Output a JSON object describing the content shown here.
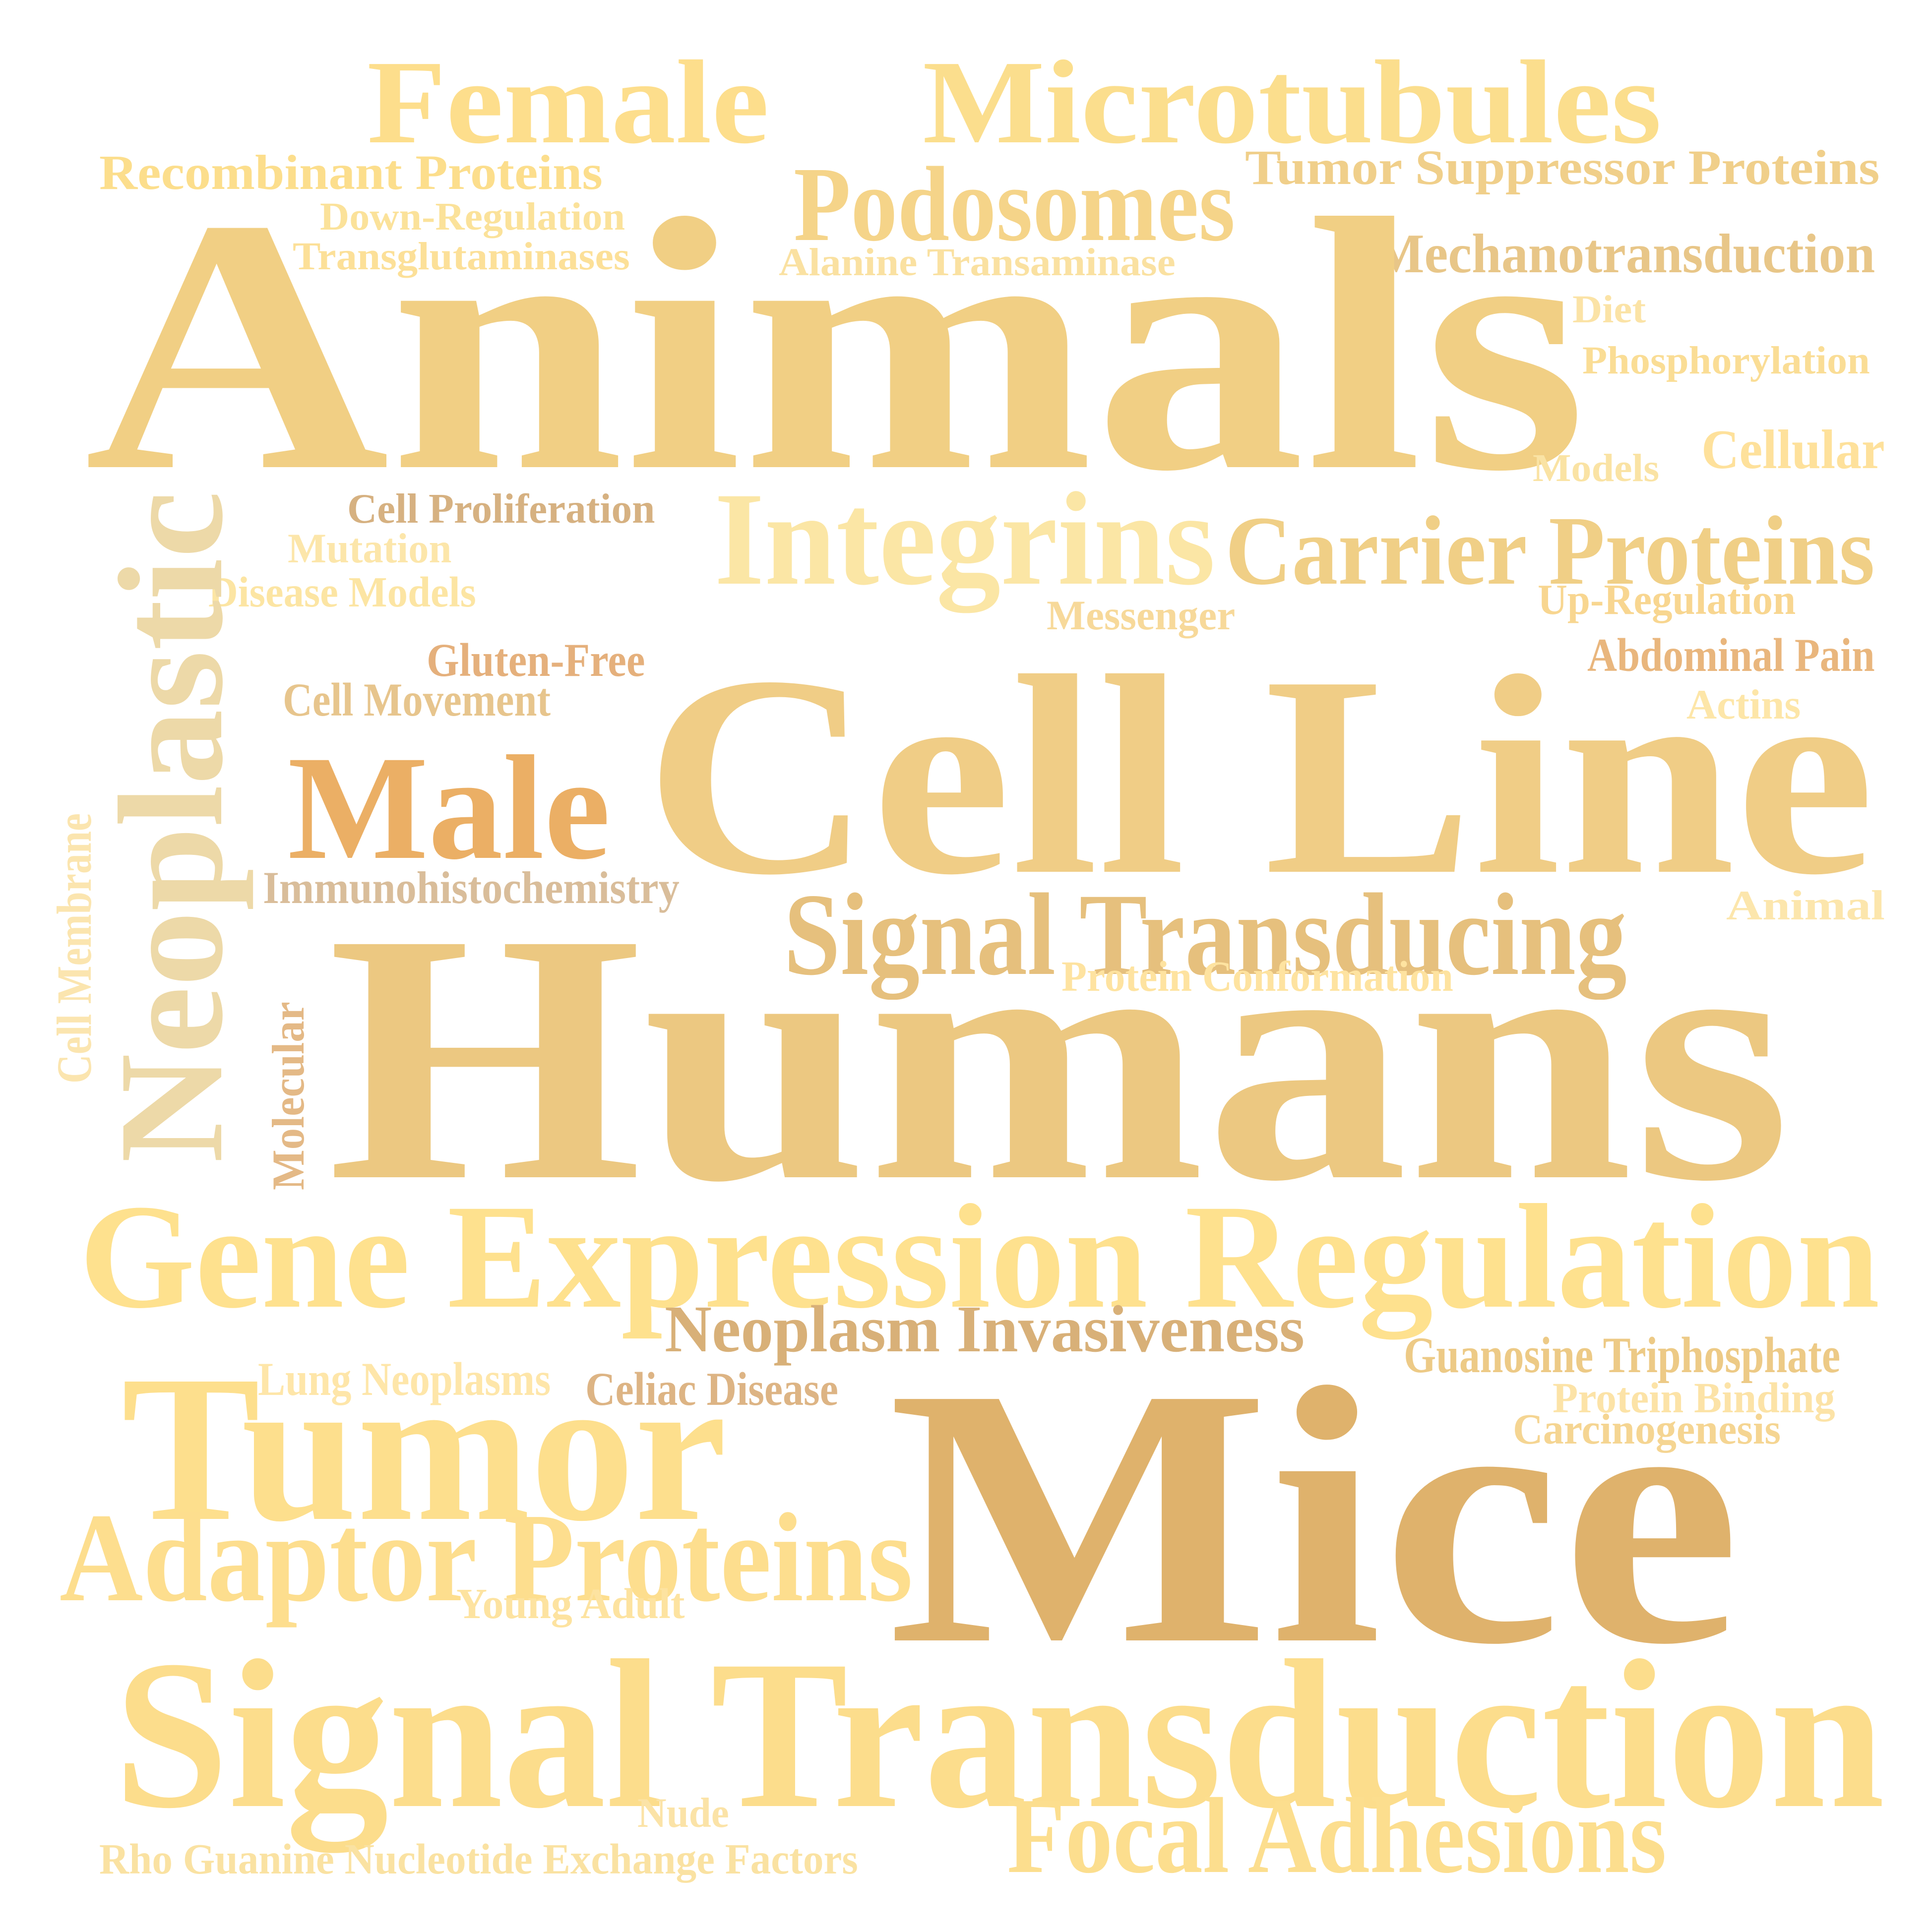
{
  "words": [
    {
      "text": "Female",
      "color": "#FDDE8C"
    },
    {
      "text": "Microtubules",
      "color": "#FBDE8D"
    },
    {
      "text": "Recombinant Proteins",
      "color": "#FCDE8C"
    },
    {
      "text": "Tumor Suppressor Proteins",
      "color": "#F0CF8A"
    },
    {
      "text": "Podosomes",
      "color": "#F5D489"
    },
    {
      "text": "Down-Regulation",
      "color": "#FBE29A"
    },
    {
      "text": "Transglutaminases",
      "color": "#FCE098"
    },
    {
      "text": "Alanine Transaminase",
      "color": "#FAE1A1"
    },
    {
      "text": "Mechanotransduction",
      "color": "#E8C688"
    },
    {
      "text": "Animals",
      "color": "#F1CF84"
    },
    {
      "text": "Diet",
      "color": "#FBE3A6"
    },
    {
      "text": "Phosphorylation",
      "color": "#FADD95"
    },
    {
      "text": "Cellular",
      "color": "#FEE19B"
    },
    {
      "text": "Models",
      "color": "#FAE3A4"
    },
    {
      "text": "Cell Proliferation",
      "color": "#D6B181"
    },
    {
      "text": "Mutation",
      "color": "#FCE6AA"
    },
    {
      "text": "Integrins",
      "color": "#FBE6A5"
    },
    {
      "text": "Carrier Proteins",
      "color": "#F0CF86"
    },
    {
      "text": "Disease Models",
      "color": "#FCE5A3"
    },
    {
      "text": "Up-Regulation",
      "color": "#F8D690"
    },
    {
      "text": "Messenger",
      "color": "#F7D99A"
    },
    {
      "text": "Neoplastic",
      "color": "#EDD9A8"
    },
    {
      "text": "Gluten-Free",
      "color": "#E5B07C"
    },
    {
      "text": "Abdominal Pain",
      "color": "#E9B67D"
    },
    {
      "text": "Cell Movement",
      "color": "#E7C58D"
    },
    {
      "text": "Actins",
      "color": "#FDE6A8"
    },
    {
      "text": "Cell Line",
      "color": "#F0CD86"
    },
    {
      "text": "Male",
      "color": "#EBAF65"
    },
    {
      "text": "Immunohistochemistry",
      "color": "#D9BD9A"
    },
    {
      "text": "Animal",
      "color": "#FCE6AC"
    },
    {
      "text": "Signal Transducing",
      "color": "#E6C07D"
    },
    {
      "text": "Cell Membrane",
      "color": "#FBE5AF"
    },
    {
      "text": "Protein Conformation",
      "color": "#FEE3A0"
    },
    {
      "text": "Molecular",
      "color": "#E4B986"
    },
    {
      "text": "Humans",
      "color": "#ECC881"
    },
    {
      "text": "Gene Expression Regulation",
      "color": "#FEE18E"
    },
    {
      "text": "Neoplasm Invasiveness",
      "color": "#D8B078"
    },
    {
      "text": "Guanosine Triphosphate",
      "color": "#EDCA86"
    },
    {
      "text": "Lung Neoplasms",
      "color": "#FEE6A9"
    },
    {
      "text": "Celiac Disease",
      "color": "#DDB484"
    },
    {
      "text": "Tumor",
      "color": "#FDDF8D"
    },
    {
      "text": "Protein Binding",
      "color": "#FCE3A7"
    },
    {
      "text": "Carcinogenesis",
      "color": "#F5D592"
    },
    {
      "text": "Mice",
      "color": "#DFB26C"
    },
    {
      "text": "Adaptor Proteins",
      "color": "#FDDE8E"
    },
    {
      "text": "Young Adult",
      "color": "#FDE3A0"
    },
    {
      "text": "Signal Transduction",
      "color": "#FCDD8C"
    },
    {
      "text": "Nude",
      "color": "#FBE3A7"
    },
    {
      "text": "Focal Adhesions",
      "color": "#FCDE8E"
    },
    {
      "text": "Rho Guanine Nucleotide Exchange Factors",
      "color": "#FAE2A2"
    }
  ]
}
